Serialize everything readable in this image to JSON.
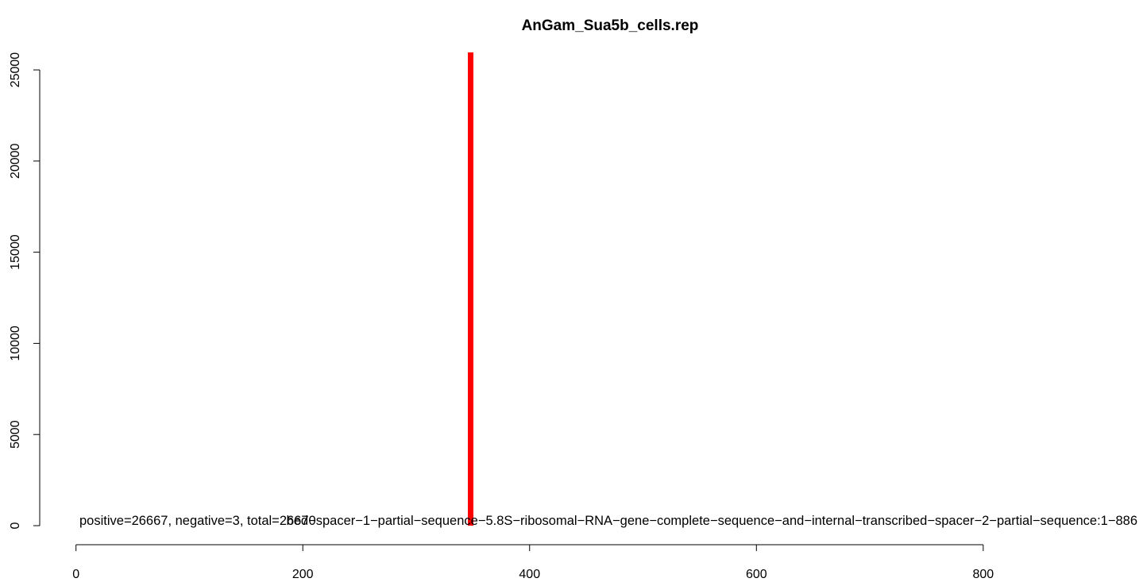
{
  "chart_data": {
    "type": "spike",
    "title": "AnGam_Sua5b_cells.rep",
    "x": [
      348
    ],
    "values": [
      26667
    ],
    "color": "#ff0000",
    "xlim": [
      -32,
      936
    ],
    "ylim": [
      0,
      25960
    ],
    "xticks": [
      0,
      200,
      400,
      600,
      800
    ],
    "yticks": [
      0,
      5000,
      10000,
      15000,
      20000,
      25000
    ],
    "annotations": [
      "bed−spacer−1−partial−sequence−5.8S−ribosomal−RNA−gene−complete−sequence−and−internal−transcribed−spacer−2−partial−sequence:1−886",
      "positive=26667, negative=3, total=26670"
    ]
  }
}
